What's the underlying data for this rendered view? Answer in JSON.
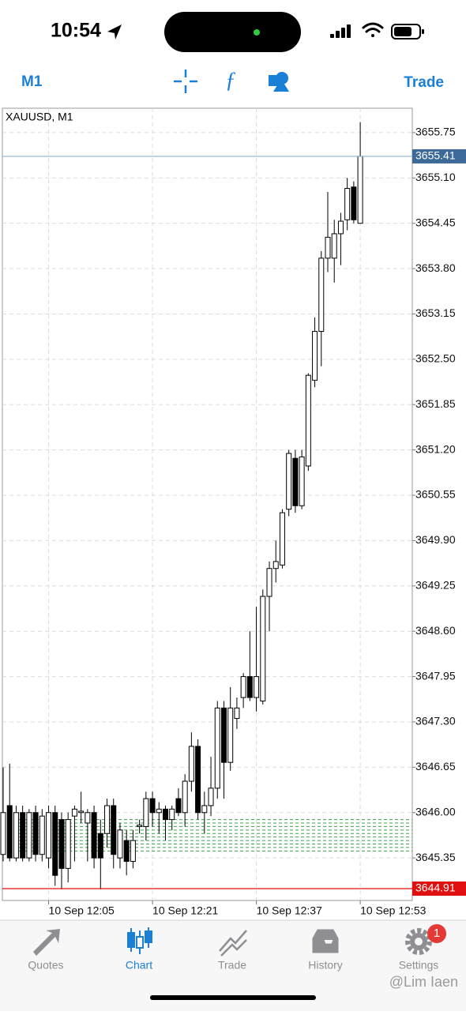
{
  "status_bar": {
    "time": "10:54"
  },
  "toolbar": {
    "timeframe": "M1",
    "trade": "Trade"
  },
  "chart_data": {
    "type": "candlestick",
    "title": "XAUUSD, M1",
    "categories": [
      null,
      null,
      null,
      null,
      null,
      null,
      null,
      "10 Sep 12:05",
      null,
      null,
      null,
      null,
      null,
      null,
      null,
      null,
      null,
      null,
      null,
      null,
      null,
      null,
      null,
      "10 Sep 12:21",
      null,
      null,
      null,
      null,
      null,
      null,
      null,
      null,
      null,
      null,
      null,
      null,
      null,
      null,
      null,
      "10 Sep 12:37",
      null,
      null,
      null,
      null,
      null,
      null,
      null,
      null,
      null,
      null,
      null,
      null,
      null,
      null,
      null,
      "10 Sep 12:53"
    ],
    "open": [
      3645.4,
      3646.1,
      3645.35,
      3646.0,
      3645.35,
      3646.0,
      3645.4,
      3645.35,
      3646.0,
      3645.9,
      3645.2,
      3645.95,
      3646.0,
      3645.85,
      3646.0,
      3645.7,
      3645.7,
      3646.1,
      3645.35,
      3645.6,
      3645.3,
      3645.8,
      3645.8,
      3646.2,
      3646.0,
      3646.05,
      3645.9,
      3646.2,
      3646.0,
      3646.45,
      3646.95,
      3646.0,
      3646.1,
      3646.35,
      3647.5,
      3646.72,
      3647.35,
      3647.65,
      3647.95,
      3647.65,
      3647.6,
      3649.1,
      3649.5,
      3649.55,
      3650.35,
      3651.08,
      3650.4,
      3650.97,
      3652.2,
      3652.9,
      3653.95,
      3653.95,
      3654.3,
      3654.5,
      3654.97,
      3654.45
    ],
    "high": [
      3646.65,
      3646.7,
      3646.1,
      3646.1,
      3646.05,
      3646.1,
      3646.05,
      3646.1,
      3646.1,
      3646.0,
      3646.0,
      3646.1,
      3646.3,
      3646.05,
      3646.1,
      3645.9,
      3646.2,
      3646.2,
      3645.85,
      3645.75,
      3645.75,
      3645.9,
      3646.3,
      3646.3,
      3646.15,
      3646.1,
      3646.1,
      3646.35,
      3646.55,
      3647.15,
      3647.05,
      3646.3,
      3646.8,
      3647.6,
      3647.6,
      3647.8,
      3647.65,
      3648.0,
      3648.6,
      3648.95,
      3649.2,
      3649.6,
      3649.9,
      3650.35,
      3651.2,
      3651.2,
      3651.2,
      3652.3,
      3653.1,
      3654.05,
      3654.9,
      3654.5,
      3654.6,
      3655.1,
      3655.05,
      3655.9
    ],
    "low": [
      3645.3,
      3645.3,
      3645.3,
      3645.3,
      3645.3,
      3645.3,
      3645.3,
      3645.2,
      3644.95,
      3644.9,
      3645.0,
      3645.3,
      3645.85,
      3645.3,
      3645.2,
      3644.9,
      3645.5,
      3645.2,
      3645.2,
      3645.1,
      3645.2,
      3645.7,
      3645.6,
      3645.8,
      3645.7,
      3645.6,
      3645.75,
      3645.95,
      3645.8,
      3646.3,
      3645.9,
      3645.7,
      3645.95,
      3646.2,
      3646.2,
      3646.6,
      3647.2,
      3647.5,
      3647.6,
      3647.45,
      3647.55,
      3648.6,
      3649.3,
      3649.5,
      3650.25,
      3650.3,
      3650.35,
      3650.9,
      3652.1,
      3652.4,
      3653.75,
      3653.6,
      3653.85,
      3654.35,
      3654.45,
      3654.45
    ],
    "close": [
      3646.0,
      3645.35,
      3646.0,
      3645.35,
      3646.0,
      3645.4,
      3645.95,
      3646.0,
      3645.1,
      3645.2,
      3645.9,
      3646.05,
      3646.02,
      3646.0,
      3645.35,
      3645.35,
      3646.1,
      3645.4,
      3645.75,
      3645.3,
      3645.6,
      3645.82,
      3646.2,
      3646.0,
      3646.05,
      3645.9,
      3646.05,
      3646.0,
      3646.45,
      3646.95,
      3646.0,
      3646.1,
      3646.35,
      3647.5,
      3646.72,
      3647.5,
      3647.5,
      3647.95,
      3647.65,
      3647.95,
      3649.1,
      3649.5,
      3649.6,
      3650.3,
      3651.15,
      3650.4,
      3651.1,
      3652.27,
      3652.9,
      3653.95,
      3654.25,
      3654.3,
      3654.48,
      3654.95,
      3654.5,
      3655.41
    ],
    "up_color": "#ffffff",
    "down_color": "#000000",
    "ylim": [
      3644.74,
      3656.1
    ],
    "yticks": [
      3645.35,
      {
        "value": 3646.0,
        "label": "3646.00"
      },
      3646.65,
      {
        "value": 3647.3,
        "label": "3647.30"
      },
      3647.95,
      {
        "value": 3648.6,
        "label": "3648.60"
      },
      3649.25,
      {
        "value": 3649.9,
        "label": "3649.90"
      },
      3650.55,
      {
        "value": 3651.2,
        "label": "3651.20"
      },
      3651.85,
      {
        "value": 3652.5,
        "label": "3652.50"
      },
      3653.15,
      {
        "value": 3653.8,
        "label": "3653.80"
      },
      3654.45,
      {
        "value": 3655.1,
        "label": "3655.10"
      },
      3655.75
    ],
    "grid": true,
    "bid_line": {
      "value": 3655.41,
      "color": "#3d6a99"
    },
    "ask_line": {
      "value": 3644.91,
      "color": "#e01010"
    },
    "order_levels": {
      "values": [
        3645.45,
        3645.5,
        3645.55,
        3645.6,
        3645.65,
        3645.7,
        3645.75,
        3645.8,
        3645.85,
        3645.9
      ],
      "color": "#3fa34d"
    }
  },
  "tab_bar": {
    "items": [
      "Quotes",
      "Chart",
      "Trade",
      "History",
      "Settings"
    ],
    "badge": 1
  },
  "watermark": "@Lim Iaen"
}
